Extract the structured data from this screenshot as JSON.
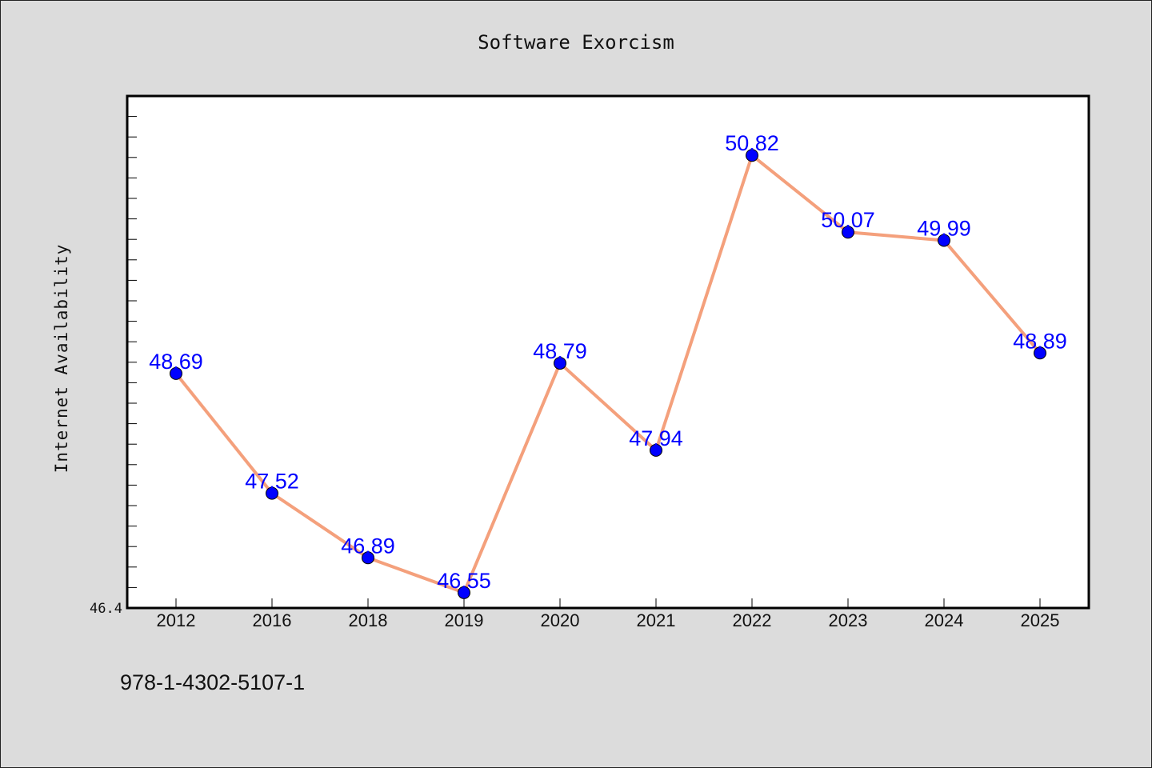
{
  "chart_data": {
    "type": "line",
    "title": "Software Exorcism",
    "xlabel": "",
    "ylabel": "Internet Availability",
    "categories": [
      "2012",
      "2016",
      "2018",
      "2019",
      "2020",
      "2021",
      "2022",
      "2023",
      "2024",
      "2025"
    ],
    "series": [
      {
        "values": [
          48.69,
          47.52,
          46.89,
          46.55,
          48.79,
          47.94,
          50.82,
          50.07,
          49.99,
          48.89
        ],
        "labels": [
          "48.69",
          "47.52",
          "46.89",
          "46.55",
          "48.79",
          "47.94",
          "50.82",
          "50.07",
          "49.99",
          "48.89"
        ]
      }
    ],
    "ylim": [
      46.4,
      51.4
    ],
    "y_tick_labels": [
      "46.4"
    ],
    "grid": false,
    "legend": "none",
    "colors": {
      "line": "#f4a07c",
      "marker": "#0000ff",
      "data_label": "#0000ff",
      "background": "#dcdcdc",
      "plot_background": "#ffffff"
    }
  },
  "footer": {
    "text": "978-1-4302-5107-1"
  }
}
